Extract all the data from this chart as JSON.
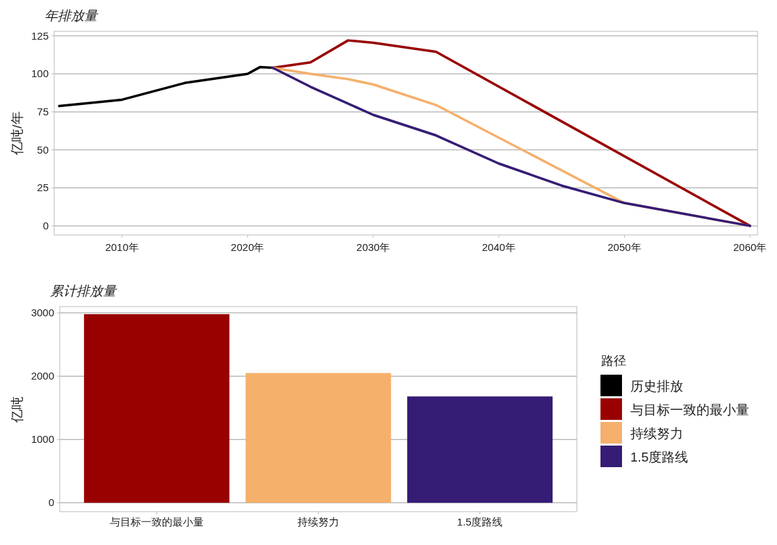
{
  "chart_data": [
    {
      "type": "line",
      "title": "年排放量",
      "ylabel": "亿吨/年",
      "legend_title": "路径",
      "legend": "right",
      "grid": "y",
      "xlim": [
        2004.6,
        2060.6
      ],
      "ylim": [
        -6,
        128
      ],
      "xticks": [
        {
          "value": 2010,
          "label": "2010年"
        },
        {
          "value": 2020,
          "label": "2020年"
        },
        {
          "value": 2030,
          "label": "2030年"
        },
        {
          "value": 2040,
          "label": "2040年"
        },
        {
          "value": 2050,
          "label": "2050年"
        },
        {
          "value": 2060,
          "label": "2060年"
        }
      ],
      "yticks": [
        0,
        25,
        50,
        75,
        100,
        125
      ],
      "series": [
        {
          "name": "历史排放",
          "color": "#000000",
          "x": [
            2005,
            2010,
            2015,
            2020,
            2021,
            2022
          ],
          "values": [
            78.8,
            83,
            94,
            100,
            104.5,
            104
          ]
        },
        {
          "name": "与目标一致的最小量",
          "color": "#990000",
          "x": [
            2022,
            2025,
            2028,
            2030,
            2035,
            2060
          ],
          "values": [
            104,
            107.5,
            122,
            120.5,
            114.5,
            0
          ]
        },
        {
          "name": "持续努力",
          "color": "#f5b06b",
          "x": [
            2022,
            2025,
            2028,
            2030,
            2035,
            2050,
            2060
          ],
          "values": [
            104,
            100,
            96.5,
            93,
            79.5,
            15,
            0
          ]
        },
        {
          "name": "1.5度路线",
          "color": "#351c75",
          "x": [
            2022,
            2025,
            2030,
            2035,
            2040,
            2045,
            2050,
            2060
          ],
          "values": [
            104,
            91.5,
            73,
            59.5,
            41,
            26.5,
            15,
            0
          ]
        }
      ]
    },
    {
      "type": "bar",
      "title": "累计排放量",
      "ylabel": "亿吨",
      "grid": "y",
      "ylim": [
        -140,
        3100
      ],
      "yticks": [
        0,
        1000,
        2000,
        3000
      ],
      "categories": [
        "与目标一致的最小量",
        "持续努力",
        "1.5度路线"
      ],
      "values": [
        2980,
        2050,
        1680
      ],
      "colors": [
        "#990000",
        "#f5b06b",
        "#351c75"
      ]
    }
  ]
}
